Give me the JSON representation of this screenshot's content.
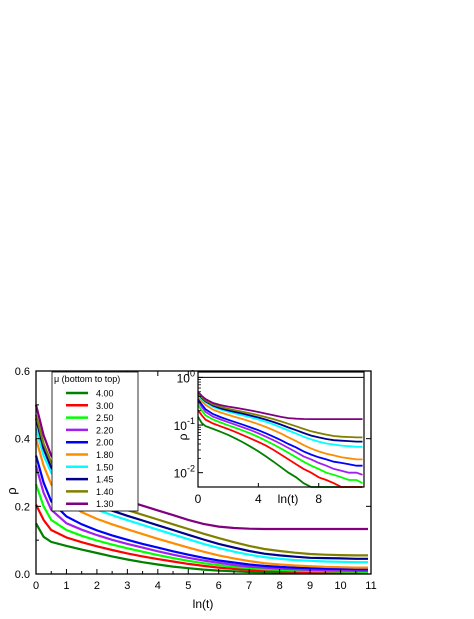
{
  "chart_data": [
    {
      "type": "line",
      "xlabel": "ln(t)",
      "ylabel": "ρ",
      "xlim": [
        0,
        11
      ],
      "ylim": [
        0,
        0.6
      ],
      "xticks": [
        "0",
        "1",
        "2",
        "3",
        "4",
        "5",
        "6",
        "7",
        "8",
        "9",
        "10",
        "11"
      ],
      "yticks": [
        "0.0",
        "0.2",
        "0.4",
        "0.6"
      ],
      "legend": {
        "title": "μ (bottom to top)",
        "placement": "upper-left"
      },
      "x": [
        0,
        0.25,
        0.5,
        1,
        1.5,
        2,
        2.5,
        3,
        3.5,
        4,
        4.5,
        5,
        5.5,
        6,
        6.5,
        7,
        7.5,
        8,
        8.5,
        9,
        9.5,
        10,
        10.5,
        10.9
      ],
      "series": [
        {
          "name": "4.00",
          "color": "#008000",
          "values": [
            0.15,
            0.11,
            0.095,
            0.083,
            0.072,
            0.062,
            0.052,
            0.043,
            0.035,
            0.028,
            0.022,
            0.017,
            0.013,
            0.01,
            0.008,
            0.006,
            0.005,
            0.004,
            0.003,
            0.003,
            0.002,
            0.002,
            0.002,
            0.002
          ]
        },
        {
          "name": "3.00",
          "color": "#ff0000",
          "values": [
            0.205,
            0.16,
            0.13,
            0.108,
            0.094,
            0.082,
            0.071,
            0.061,
            0.052,
            0.044,
            0.037,
            0.03,
            0.024,
            0.019,
            0.015,
            0.012,
            0.01,
            0.008,
            0.007,
            0.006,
            0.005,
            0.005,
            0.004,
            0.004
          ]
        },
        {
          "name": "2.50",
          "color": "#00ff00",
          "values": [
            0.265,
            0.2,
            0.16,
            0.13,
            0.113,
            0.099,
            0.087,
            0.076,
            0.066,
            0.056,
            0.047,
            0.039,
            0.032,
            0.026,
            0.021,
            0.017,
            0.014,
            0.012,
            0.01,
            0.009,
            0.008,
            0.007,
            0.007,
            0.006
          ]
        },
        {
          "name": "2.20",
          "color": "#a020f0",
          "values": [
            0.32,
            0.24,
            0.19,
            0.15,
            0.131,
            0.115,
            0.101,
            0.089,
            0.078,
            0.067,
            0.057,
            0.048,
            0.04,
            0.033,
            0.027,
            0.022,
            0.019,
            0.016,
            0.014,
            0.012,
            0.011,
            0.01,
            0.01,
            0.009
          ]
        },
        {
          "name": "2.00",
          "color": "#0000ff",
          "values": [
            0.35,
            0.27,
            0.215,
            0.17,
            0.147,
            0.129,
            0.114,
            0.101,
            0.089,
            0.078,
            0.067,
            0.057,
            0.048,
            0.04,
            0.034,
            0.028,
            0.024,
            0.021,
            0.019,
            0.017,
            0.016,
            0.015,
            0.014,
            0.014
          ]
        },
        {
          "name": "1.80",
          "color": "#ff8c00",
          "values": [
            0.4,
            0.32,
            0.265,
            0.21,
            0.183,
            0.163,
            0.147,
            0.132,
            0.118,
            0.104,
            0.091,
            0.078,
            0.066,
            0.055,
            0.046,
            0.038,
            0.032,
            0.028,
            0.025,
            0.023,
            0.021,
            0.02,
            0.019,
            0.019
          ]
        },
        {
          "name": "1.50",
          "color": "#00ffff",
          "values": [
            0.43,
            0.35,
            0.3,
            0.24,
            0.21,
            0.19,
            0.174,
            0.159,
            0.145,
            0.131,
            0.117,
            0.103,
            0.089,
            0.077,
            0.066,
            0.057,
            0.05,
            0.045,
            0.041,
            0.039,
            0.037,
            0.036,
            0.035,
            0.035
          ]
        },
        {
          "name": "1.45",
          "color": "#00008b",
          "values": [
            0.46,
            0.37,
            0.315,
            0.255,
            0.224,
            0.203,
            0.187,
            0.172,
            0.158,
            0.144,
            0.13,
            0.116,
            0.102,
            0.089,
            0.078,
            0.068,
            0.06,
            0.055,
            0.051,
            0.048,
            0.047,
            0.046,
            0.045,
            0.045
          ]
        },
        {
          "name": "1.40",
          "color": "#808000",
          "values": [
            0.47,
            0.385,
            0.33,
            0.27,
            0.24,
            0.219,
            0.203,
            0.189,
            0.175,
            0.161,
            0.147,
            0.133,
            0.119,
            0.106,
            0.094,
            0.083,
            0.074,
            0.068,
            0.063,
            0.059,
            0.057,
            0.056,
            0.055,
            0.055
          ]
        },
        {
          "name": "1.30",
          "color": "#800080",
          "values": [
            0.5,
            0.41,
            0.35,
            0.29,
            0.262,
            0.244,
            0.23,
            0.216,
            0.202,
            0.188,
            0.174,
            0.16,
            0.148,
            0.14,
            0.136,
            0.134,
            0.133,
            0.133,
            0.133,
            0.133,
            0.133,
            0.133,
            0.133,
            0.133
          ]
        }
      ]
    },
    {
      "type": "line",
      "scale": "log-y",
      "xlabel": "ln(t)",
      "ylabel": "ρ",
      "xlim": [
        0,
        11
      ],
      "ylim": [
        0.005,
        1.3
      ],
      "xticks": [
        "0",
        "4",
        "8"
      ],
      "yticks": [
        {
          "base": "10",
          "exp": "0"
        },
        {
          "base": "10",
          "exp": "-1"
        },
        {
          "base": "10",
          "exp": "-2"
        }
      ],
      "series_ref": "same series as main plot"
    }
  ]
}
